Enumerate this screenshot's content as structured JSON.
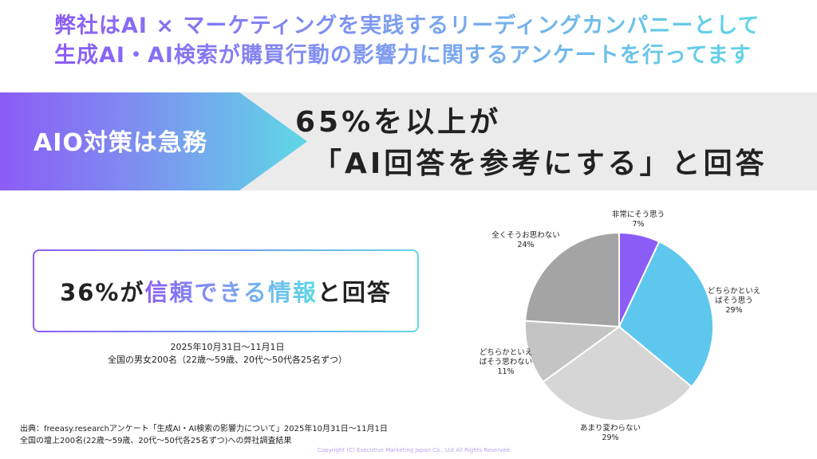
{
  "headline": {
    "line1": "弊社はAI × マーケティングを実践するリーディングカンパニーとして",
    "line2": "生成AI・AI検索が購買行動の影響力に関するアンケートを行ってます"
  },
  "banner": {
    "label": "AIO対策は急務",
    "line1": "65%を以上が",
    "line2": "「AI回答を参考にする」と回答"
  },
  "highlight": {
    "prefix": "36%が",
    "emphasis": "信頼できる情報",
    "suffix": "と回答"
  },
  "survey_info": {
    "period": "2025年10月31日～11月1日",
    "sample": "全国の男女200名（22歳～59歳、20代～50代各25名ずつ）"
  },
  "source": {
    "line1": "出典：freeasy.researchアンケート「生成AI・AI検索の影響力について」2025年10月31日～11月1日",
    "line2": "全国の壇上200名(22歳～59歳、20代～50代各25名ずつ)への弊社調査結果"
  },
  "copyright": "Copyright (C) Executive Marketing Japan Co., Ltd All Rights Reserved",
  "chart_data": {
    "type": "pie",
    "unit": "%",
    "slices": [
      {
        "label_lines": [
          "非常にそう思う"
        ],
        "pct_label": "7%",
        "value": 7,
        "color": "#8b5cf6"
      },
      {
        "label_lines": [
          "どちらかといえ",
          "ばそう思う"
        ],
        "pct_label": "29%",
        "value": 29,
        "color": "#5ec7ee"
      },
      {
        "label_lines": [
          "あまり変わらない"
        ],
        "pct_label": "29%",
        "value": 29,
        "color": "#d6d6d6"
      },
      {
        "label_lines": [
          "どちらかといえ",
          "ばそう思わない"
        ],
        "pct_label": "11%",
        "value": 11,
        "color": "#c4c4c4"
      },
      {
        "label_lines": [
          "全くそうお思わない"
        ],
        "pct_label": "24%",
        "value": 24,
        "color": "#a4a4a4"
      }
    ]
  }
}
